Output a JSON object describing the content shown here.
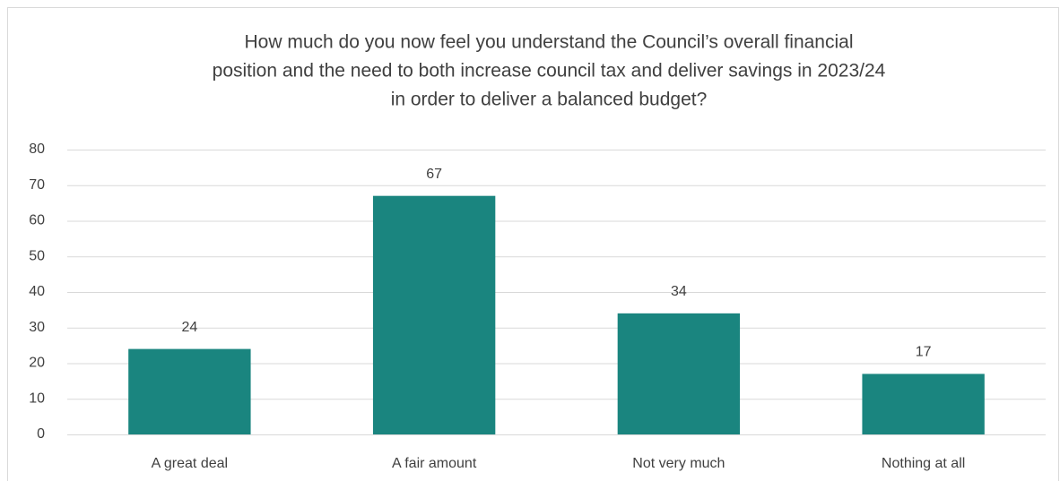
{
  "chart_data": {
    "type": "bar",
    "title": [
      "How much do you now feel you understand the Council’s overall financial",
      "position and the need to both increase council tax and deliver savings in 2023/24",
      "in order to deliver a balanced budget?"
    ],
    "categories": [
      "A great deal",
      "A fair amount",
      "Not very much",
      "Nothing at all"
    ],
    "values": [
      24,
      67,
      34,
      17
    ],
    "color": "#1a857f",
    "ylim": [
      0,
      80
    ],
    "yticks": [
      0,
      10,
      20,
      30,
      40,
      50,
      60,
      70,
      80
    ],
    "grid": true
  }
}
